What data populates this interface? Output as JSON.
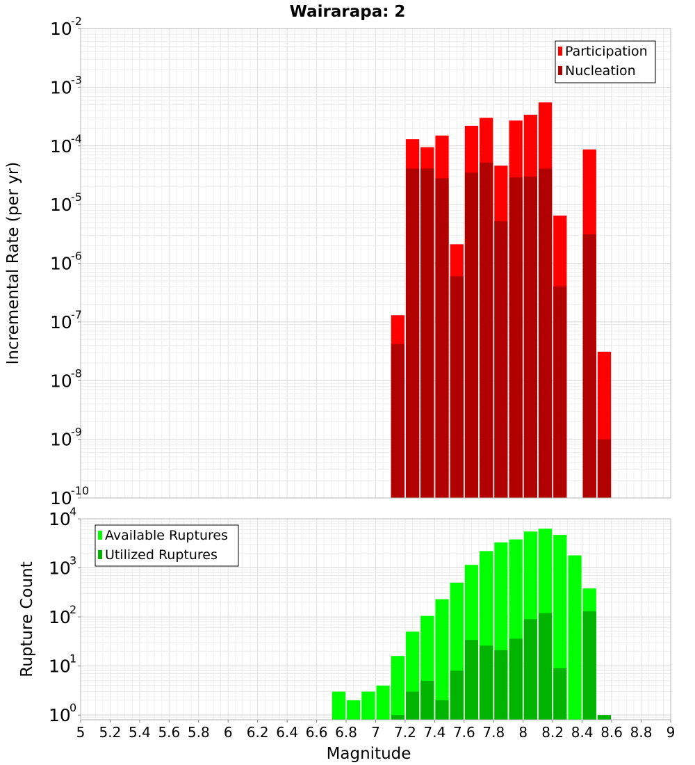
{
  "chart_data": [
    {
      "type": "bar",
      "title": "Wairarapa: 2",
      "xlabel": "",
      "ylabel": "Incremental Rate (per yr)",
      "y_scale": "log",
      "xlim": [
        5,
        9
      ],
      "ylim": [
        1e-10,
        0.01
      ],
      "y_tick_base": "10",
      "y_ticks": [
        {
          "value": 0.01,
          "exp": "-2"
        },
        {
          "value": 0.001,
          "exp": "-3"
        },
        {
          "value": 0.0001,
          "exp": "-4"
        },
        {
          "value": 1e-05,
          "exp": "-5"
        },
        {
          "value": 1e-06,
          "exp": "-6"
        },
        {
          "value": 1e-07,
          "exp": "-7"
        },
        {
          "value": 1e-08,
          "exp": "-8"
        },
        {
          "value": 1e-09,
          "exp": "-9"
        },
        {
          "value": 1e-10,
          "exp": "-10"
        }
      ],
      "bin_width": 0.1,
      "grid": true,
      "legend_position": "top-right",
      "series": [
        {
          "name": "Participation",
          "color": "#ff0000",
          "points": [
            {
              "x": 7.15,
              "y": 1.3e-07
            },
            {
              "x": 7.25,
              "y": 0.00013
            },
            {
              "x": 7.35,
              "y": 9.5e-05
            },
            {
              "x": 7.45,
              "y": 0.00015
            },
            {
              "x": 7.55,
              "y": 2.1e-06
            },
            {
              "x": 7.65,
              "y": 0.00022
            },
            {
              "x": 7.75,
              "y": 0.0003
            },
            {
              "x": 7.85,
              "y": 4.6e-05
            },
            {
              "x": 7.95,
              "y": 0.00027
            },
            {
              "x": 8.05,
              "y": 0.00034
            },
            {
              "x": 8.15,
              "y": 0.00055
            },
            {
              "x": 8.25,
              "y": 6.5e-06
            },
            {
              "x": 8.45,
              "y": 8.7e-05
            },
            {
              "x": 8.55,
              "y": 3.1e-08
            }
          ]
        },
        {
          "name": "Nucleation",
          "color": "#b00000",
          "points": [
            {
              "x": 7.15,
              "y": 4.2e-08
            },
            {
              "x": 7.25,
              "y": 4.1e-05
            },
            {
              "x": 7.35,
              "y": 4.1e-05
            },
            {
              "x": 7.45,
              "y": 2.8e-05
            },
            {
              "x": 7.55,
              "y": 6e-07
            },
            {
              "x": 7.65,
              "y": 3.5e-05
            },
            {
              "x": 7.75,
              "y": 5.2e-05
            },
            {
              "x": 7.85,
              "y": 5.2e-06
            },
            {
              "x": 7.95,
              "y": 2.9e-05
            },
            {
              "x": 8.05,
              "y": 3e-05
            },
            {
              "x": 8.15,
              "y": 4.1e-05
            },
            {
              "x": 8.25,
              "y": 4e-07
            },
            {
              "x": 8.45,
              "y": 3.1e-06
            },
            {
              "x": 8.55,
              "y": 1e-09
            }
          ]
        }
      ]
    },
    {
      "type": "bar",
      "title": "",
      "xlabel": "Magnitude",
      "ylabel": "Rupture Count",
      "y_scale": "log",
      "xlim": [
        5,
        9
      ],
      "ylim": [
        0.8,
        10000
      ],
      "x_ticks": [
        "5",
        "5.2",
        "5.4",
        "5.6",
        "5.8",
        "6",
        "6.2",
        "6.4",
        "6.6",
        "6.8",
        "7",
        "7.2",
        "7.4",
        "7.6",
        "7.8",
        "8",
        "8.2",
        "8.4",
        "8.6",
        "8.8",
        "9"
      ],
      "y_tick_base": "10",
      "y_ticks": [
        {
          "value": 1,
          "exp": "0"
        },
        {
          "value": 10,
          "exp": "1"
        },
        {
          "value": 100,
          "exp": "2"
        },
        {
          "value": 1000,
          "exp": "3"
        },
        {
          "value": 10000,
          "exp": "4"
        }
      ],
      "bin_width": 0.1,
      "grid": true,
      "legend_position": "top-left",
      "series": [
        {
          "name": "Available Ruptures",
          "color": "#00ff00",
          "points": [
            {
              "x": 6.75,
              "y": 3
            },
            {
              "x": 6.85,
              "y": 2
            },
            {
              "x": 6.95,
              "y": 3
            },
            {
              "x": 7.05,
              "y": 4
            },
            {
              "x": 7.15,
              "y": 16
            },
            {
              "x": 7.25,
              "y": 50
            },
            {
              "x": 7.35,
              "y": 105
            },
            {
              "x": 7.45,
              "y": 230
            },
            {
              "x": 7.55,
              "y": 500
            },
            {
              "x": 7.65,
              "y": 1150
            },
            {
              "x": 7.75,
              "y": 2200
            },
            {
              "x": 7.85,
              "y": 3300
            },
            {
              "x": 7.95,
              "y": 3800
            },
            {
              "x": 8.05,
              "y": 5500
            },
            {
              "x": 8.15,
              "y": 6300
            },
            {
              "x": 8.25,
              "y": 4700
            },
            {
              "x": 8.35,
              "y": 1800
            },
            {
              "x": 8.45,
              "y": 380
            }
          ]
        },
        {
          "name": "Utilized Ruptures",
          "color": "#00b400",
          "points": [
            {
              "x": 7.15,
              "y": 1
            },
            {
              "x": 7.25,
              "y": 3
            },
            {
              "x": 7.35,
              "y": 5
            },
            {
              "x": 7.45,
              "y": 2
            },
            {
              "x": 7.55,
              "y": 8
            },
            {
              "x": 7.65,
              "y": 34
            },
            {
              "x": 7.75,
              "y": 26
            },
            {
              "x": 7.85,
              "y": 21
            },
            {
              "x": 7.95,
              "y": 36
            },
            {
              "x": 8.05,
              "y": 90
            },
            {
              "x": 8.15,
              "y": 120
            },
            {
              "x": 8.25,
              "y": 9
            },
            {
              "x": 8.45,
              "y": 130
            },
            {
              "x": 8.55,
              "y": 1
            }
          ]
        }
      ]
    }
  ]
}
